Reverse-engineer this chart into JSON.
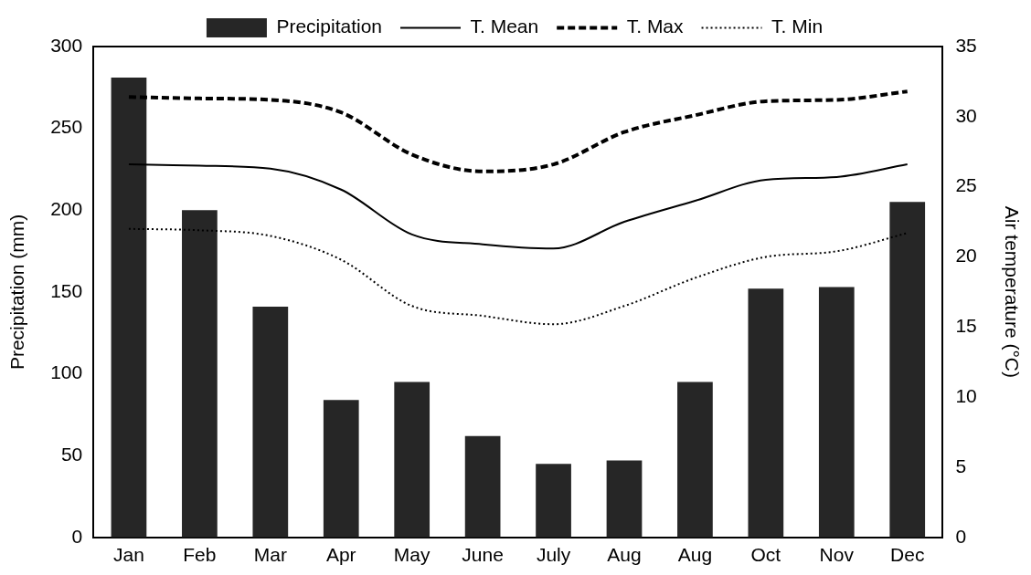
{
  "chart_data": {
    "type": "bar",
    "xlabel": null,
    "ylabel": "Precipitation (mm)",
    "y2label": "Air temperature (°C)",
    "categories": [
      "Jan",
      "Feb",
      "Mar",
      "Apr",
      "May",
      "June",
      "July",
      "Aug",
      "Aug",
      "Oct",
      "Nov",
      "Dec"
    ],
    "series": [
      {
        "name": "Precipitation",
        "color": "#262626",
        "values": [
          281,
          200,
          141,
          84,
          95,
          62,
          45,
          47,
          95,
          152,
          153,
          205
        ]
      },
      {
        "name": "T. Mean",
        "type": "line",
        "axis": "y2",
        "color": "#000000",
        "line_style": "solid",
        "values": [
          26.6,
          26.5,
          26.3,
          24.8,
          21.6,
          20.9,
          20.6,
          22.5,
          24.0,
          25.5,
          25.7,
          26.6
        ]
      },
      {
        "name": "T. Max",
        "type": "line",
        "axis": "y2",
        "color": "#000000",
        "line_style": "dashed",
        "values": [
          31.4,
          31.3,
          31.2,
          30.3,
          27.3,
          26.1,
          26.6,
          28.9,
          30.1,
          31.1,
          31.2,
          31.8
        ]
      },
      {
        "name": "T. Min",
        "type": "line",
        "axis": "y2",
        "color": "#000000",
        "line_style": "dotted",
        "values": [
          22.0,
          21.9,
          21.5,
          19.8,
          16.5,
          15.8,
          15.2,
          16.5,
          18.5,
          20.0,
          20.4,
          21.7
        ]
      }
    ],
    "ylim": [
      0,
      300
    ],
    "yticks": [
      0,
      50,
      100,
      150,
      200,
      250,
      300
    ],
    "y2lim": [
      0,
      35
    ],
    "y2ticks": [
      0,
      5,
      10,
      15,
      20,
      25,
      30,
      35
    ],
    "grid": false,
    "legend": "top",
    "marker": "none"
  }
}
